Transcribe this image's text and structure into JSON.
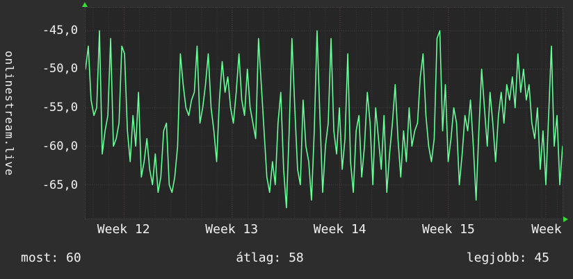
{
  "vertical_label": "onlinestream.live",
  "footer": {
    "items": [
      "most: 60",
      "átlag: 58",
      "legjobb: 45"
    ]
  },
  "colors": {
    "background": "#2d2d2d",
    "canvas": "#262626",
    "line": "#66ff99",
    "grid": "#474747",
    "grid_minor": "#383838",
    "grid_week": "#5a3c3c",
    "text": "#f2f2f2",
    "arrow": "#38dd38"
  },
  "chart_data": {
    "type": "line",
    "title": "",
    "ylabel": "onlinestream.live",
    "xlabel": "",
    "ylim": [
      -69.4,
      -42
    ],
    "grid": true,
    "legend_position": "none",
    "y_ticks": [
      {
        "label": "-45,0",
        "value": -45
      },
      {
        "label": "-50,0",
        "value": -50
      },
      {
        "label": "-55,0",
        "value": -55
      },
      {
        "label": "-60,0",
        "value": -60
      },
      {
        "label": "-65,0",
        "value": -65
      }
    ],
    "x_ticks": [
      {
        "label": "Week 12",
        "pos": 0.081
      },
      {
        "label": "Week 13",
        "pos": 0.307
      },
      {
        "label": "Week 14",
        "pos": 0.533
      },
      {
        "label": "Week 15",
        "pos": 0.76
      },
      {
        "label": "Week",
        "pos": 0.965
      }
    ],
    "week_fraction": 0.227,
    "values": [
      -50,
      -47,
      -54,
      -56,
      -55,
      -45,
      -61,
      -58,
      -56,
      -46,
      -60,
      -59,
      -57,
      -47,
      -48,
      -58,
      -62,
      -56,
      -60,
      -53,
      -64,
      -62,
      -59,
      -63,
      -65,
      -61,
      -66,
      -64,
      -58,
      -57,
      -65,
      -66,
      -64,
      -60,
      -48,
      -52,
      -55,
      -56,
      -54,
      -53,
      -47,
      -57,
      -55,
      -52,
      -48,
      -55,
      -58,
      -62,
      -54,
      -49,
      -53,
      -51,
      -55,
      -57,
      -53,
      -48,
      -54,
      -56,
      -50,
      -55,
      -57,
      -59,
      -46,
      -52,
      -58,
      -64,
      -66,
      -62,
      -65,
      -57,
      -53,
      -63,
      -68,
      -58,
      -46,
      -55,
      -63,
      -65,
      -54,
      -60,
      -62,
      -67,
      -58,
      -45,
      -56,
      -66,
      -60,
      -57,
      -46,
      -58,
      -61,
      -55,
      -63,
      -59,
      -48,
      -62,
      -66,
      -58,
      -56,
      -64,
      -60,
      -53,
      -57,
      -65,
      -55,
      -59,
      -63,
      -56,
      -66,
      -61,
      -57,
      -52,
      -59,
      -64,
      -58,
      -62,
      -55,
      -60,
      -58,
      -57,
      -51,
      -48,
      -56,
      -60,
      -62,
      -59,
      -46,
      -45,
      -58,
      -52,
      -62,
      -59,
      -55,
      -57,
      -65,
      -61,
      -56,
      -58,
      -54,
      -60,
      -67,
      -58,
      -50,
      -55,
      -60,
      -53,
      -57,
      -62,
      -56,
      -53,
      -57,
      -52,
      -54,
      -51,
      -55,
      -48,
      -53,
      -50,
      -54,
      -52,
      -57,
      -59,
      -55,
      -63,
      -58,
      -65,
      -56,
      -47,
      -60,
      -56,
      -65,
      -60
    ],
    "stats": {
      "most": 60,
      "atlag": 58,
      "legjobb": 45
    }
  }
}
